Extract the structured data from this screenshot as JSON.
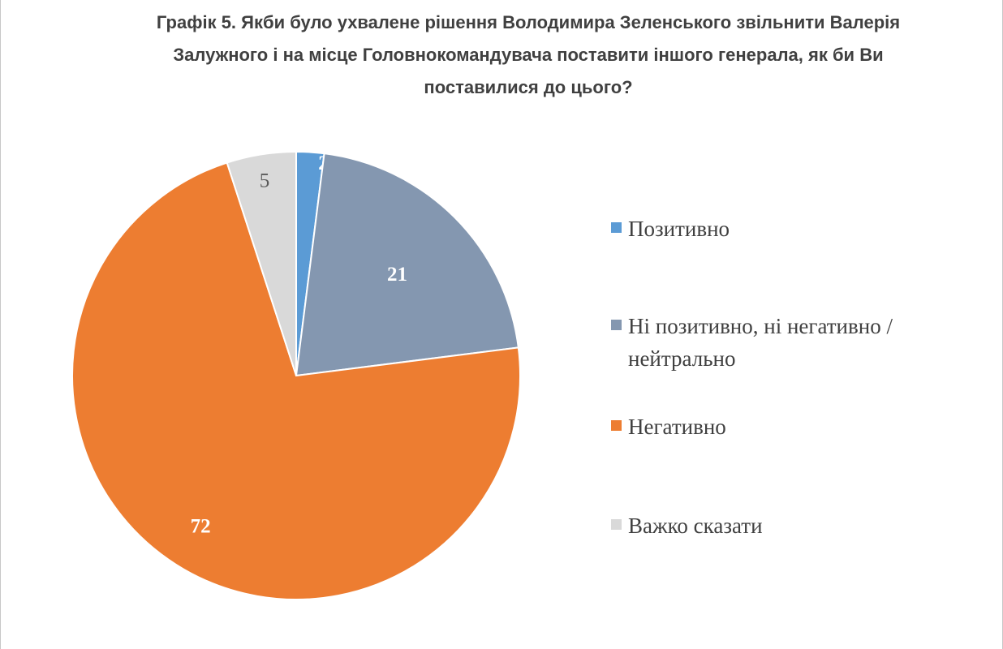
{
  "chart_data": {
    "type": "pie",
    "title_lines": [
      "Графік 5. Якби було ухвалене рішення Володимира Зеленського звільнити Валерія",
      "Залужного і на місце Головнокомандувача поставити іншого генерала, як би Ви",
      "поставилися до цього?"
    ],
    "slices": [
      {
        "label": "Позитивно",
        "value": 2,
        "color": "#5b9bd5",
        "data_label_color": "#ffffff"
      },
      {
        "label": "Ні позитивно, ні негативно / нейтрально",
        "value": 21,
        "color": "#8497b0",
        "data_label_color": "#ffffff"
      },
      {
        "label": "Негативно",
        "value": 72,
        "color": "#ed7d31",
        "data_label_color": "#ffffff"
      },
      {
        "label": "Важко сказати",
        "value": 5,
        "color": "#d9d9d9",
        "data_label_color": "#595959"
      }
    ],
    "legend_position": "right"
  }
}
